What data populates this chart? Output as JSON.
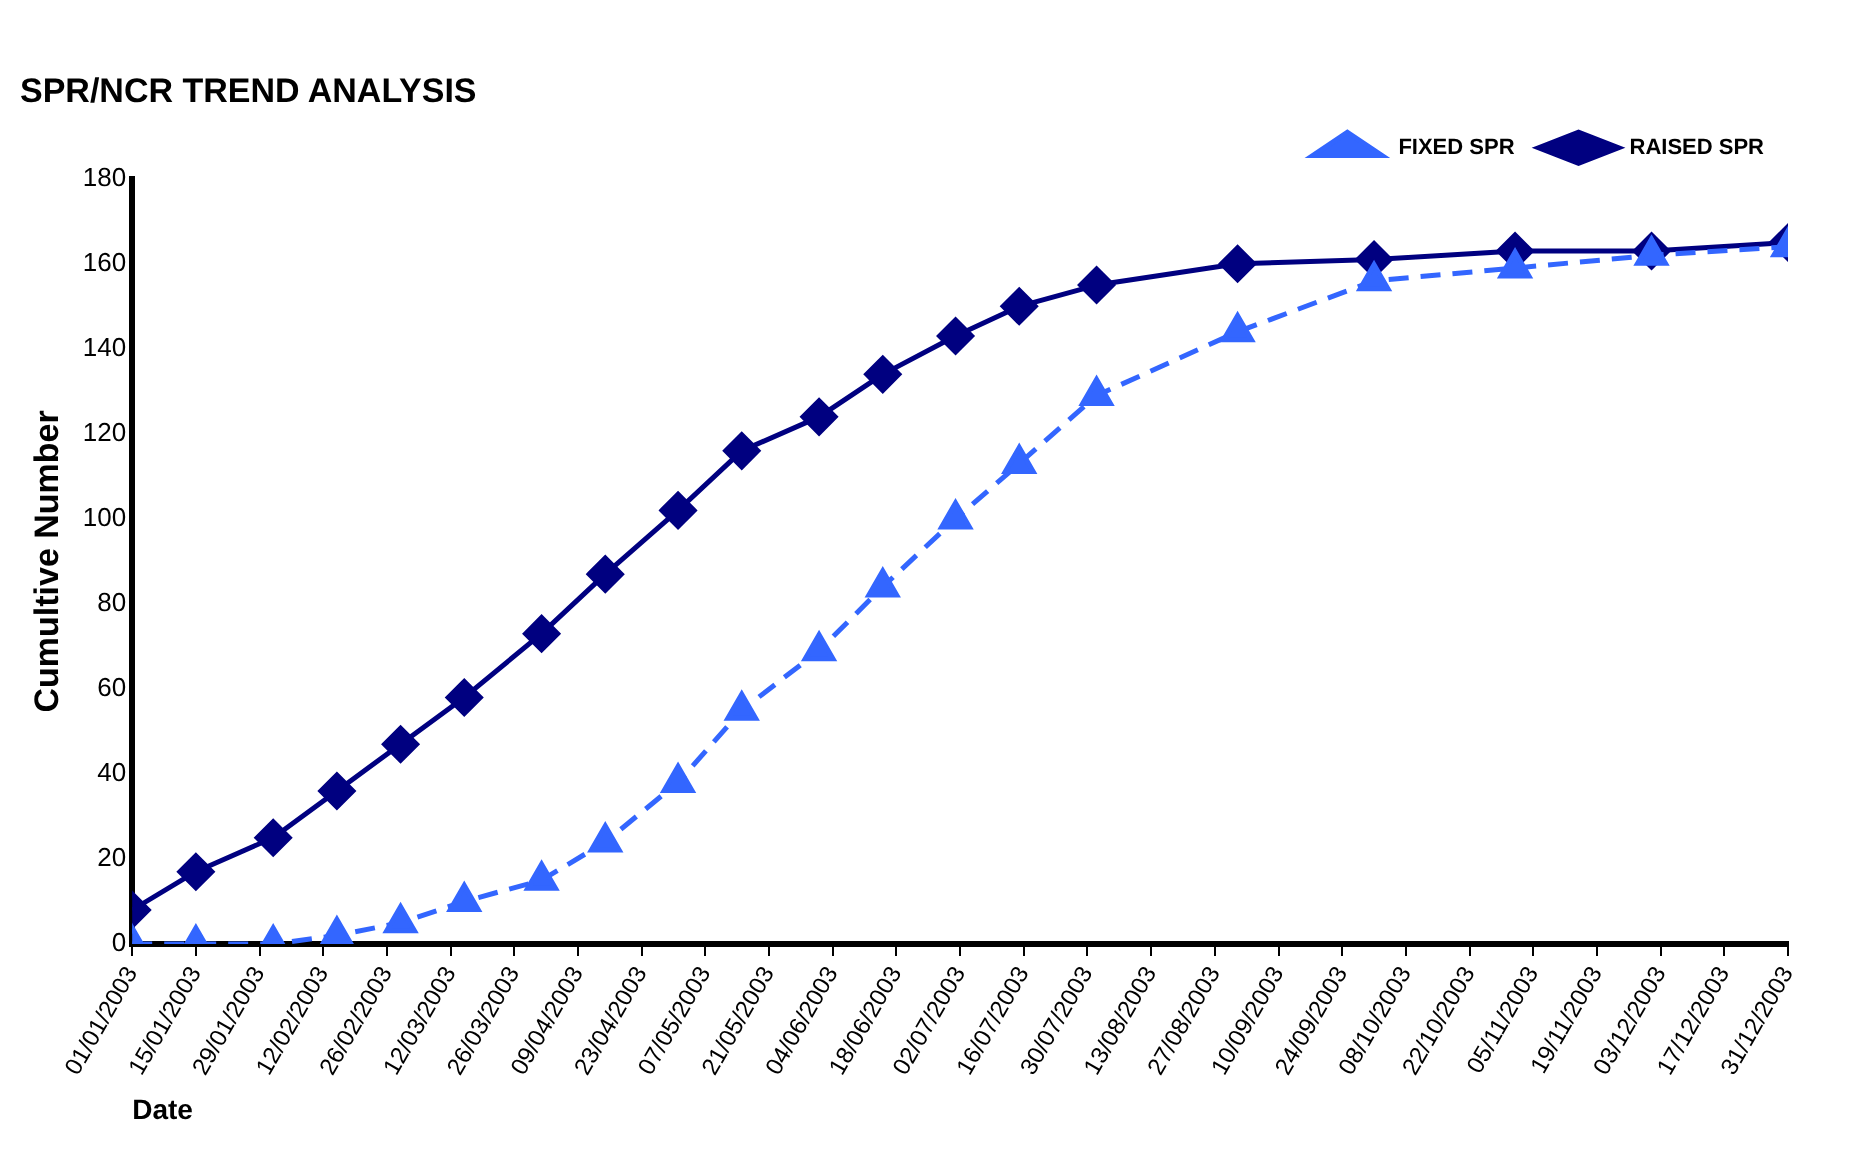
{
  "chart_data": {
    "type": "line",
    "title": "SPR/NCR TREND ANALYSIS",
    "xlabel": "Date",
    "ylabel": "Cumultive Number",
    "x": [
      "2003-01-01",
      "2003-01-15",
      "2003-02-01",
      "2003-02-15",
      "2003-03-01",
      "2003-03-15",
      "2003-04-01",
      "2003-04-15",
      "2003-05-01",
      "2003-05-15",
      "2003-06-01",
      "2003-06-15",
      "2003-07-01",
      "2003-07-15",
      "2003-08-01",
      "2003-09-01",
      "2003-10-01",
      "2003-11-01",
      "2003-12-01",
      "2003-12-31"
    ],
    "series": [
      {
        "name": "RAISED SPR",
        "color": "#000080",
        "marker": "diamond",
        "line_style": "solid",
        "values": [
          8,
          17,
          25,
          36,
          47,
          58,
          73,
          87,
          102,
          116,
          124,
          134,
          143,
          150,
          155,
          160,
          161,
          163,
          163,
          165
        ]
      },
      {
        "name": "FIXED SPR",
        "color": "#3366ff",
        "marker": "triangle",
        "line_style": "dashed",
        "values": [
          0,
          0,
          0,
          2,
          5,
          10,
          15,
          24,
          38,
          55,
          69,
          84,
          100,
          113,
          129,
          144,
          156,
          159,
          162,
          164
        ]
      }
    ],
    "xlim": [
      "2003-01-01",
      "2003-12-31"
    ],
    "xticks": [
      {
        "value": "2003-01-01",
        "label": "01/01/2003"
      },
      {
        "value": "2003-01-15",
        "label": "15/01/2003"
      },
      {
        "value": "2003-01-29",
        "label": "29/01/2003"
      },
      {
        "value": "2003-02-12",
        "label": "12/02/2003"
      },
      {
        "value": "2003-02-26",
        "label": "26/02/2003"
      },
      {
        "value": "2003-03-12",
        "label": "12/03/2003"
      },
      {
        "value": "2003-03-26",
        "label": "26/03/2003"
      },
      {
        "value": "2003-04-09",
        "label": "09/04/2003"
      },
      {
        "value": "2003-04-23",
        "label": "23/04/2003"
      },
      {
        "value": "2003-05-07",
        "label": "07/05/2003"
      },
      {
        "value": "2003-05-21",
        "label": "21/05/2003"
      },
      {
        "value": "2003-06-04",
        "label": "04/06/2003"
      },
      {
        "value": "2003-06-18",
        "label": "18/06/2003"
      },
      {
        "value": "2003-07-02",
        "label": "02/07/2003"
      },
      {
        "value": "2003-07-16",
        "label": "16/07/2003"
      },
      {
        "value": "2003-07-30",
        "label": "30/07/2003"
      },
      {
        "value": "2003-08-13",
        "label": "13/08/2003"
      },
      {
        "value": "2003-08-27",
        "label": "27/08/2003"
      },
      {
        "value": "2003-09-10",
        "label": "10/09/2003"
      },
      {
        "value": "2003-09-24",
        "label": "24/09/2003"
      },
      {
        "value": "2003-10-08",
        "label": "08/10/2003"
      },
      {
        "value": "2003-10-22",
        "label": "22/10/2003"
      },
      {
        "value": "2003-11-05",
        "label": "05/11/2003"
      },
      {
        "value": "2003-11-19",
        "label": "19/11/2003"
      },
      {
        "value": "2003-12-03",
        "label": "03/12/2003"
      },
      {
        "value": "2003-12-17",
        "label": "17/12/2003"
      },
      {
        "value": "2003-12-31",
        "label": "31/12/2003"
      }
    ],
    "ylim": [
      0,
      180
    ],
    "yticks": [
      0,
      20,
      40,
      60,
      80,
      100,
      120,
      140,
      160,
      180
    ],
    "grid": false,
    "legend": "top right"
  }
}
